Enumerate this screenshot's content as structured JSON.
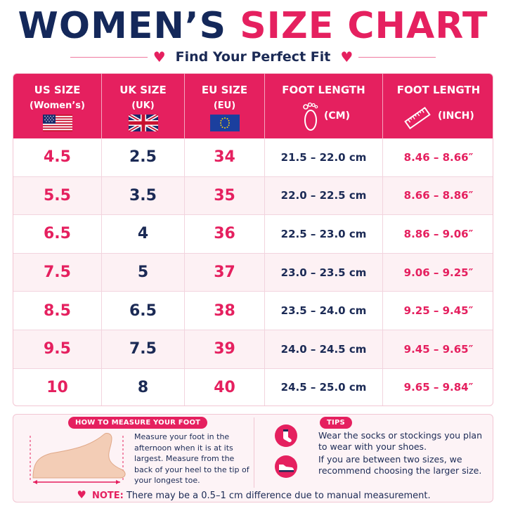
{
  "title": {
    "part1": "WOMEN’S",
    "part2": "SIZE CHART"
  },
  "subtitle": "Find Your Perfect Fit",
  "header": {
    "us": {
      "line1": "US SIZE",
      "line2": "(Women’s)",
      "flag": "us-flag"
    },
    "uk": {
      "line1": "UK SIZE",
      "line2": "(UK)",
      "flag": "uk-flag"
    },
    "eu": {
      "line1": "EU SIZE",
      "line2": "(EU)",
      "flag": "eu-flag"
    },
    "cm": {
      "line1": "FOOT LENGTH",
      "unit": "(CM)",
      "icon": "footprint-icon"
    },
    "inch": {
      "line1": "FOOT LENGTH",
      "unit": "(INCH)",
      "icon": "ruler-icon"
    }
  },
  "rows": [
    {
      "us": "4.5",
      "uk": "2.5",
      "eu": "34",
      "cm": "21.5 – 22.0 cm",
      "inch": "8.46 – 8.66″"
    },
    {
      "us": "5.5",
      "uk": "3.5",
      "eu": "35",
      "cm": "22.0 – 22.5 cm",
      "inch": "8.66 – 8.86″"
    },
    {
      "us": "6.5",
      "uk": "4",
      "eu": "36",
      "cm": "22.5 – 23.0 cm",
      "inch": "8.86 – 9.06″"
    },
    {
      "us": "7.5",
      "uk": "5",
      "eu": "37",
      "cm": "23.0 – 23.5 cm",
      "inch": "9.06 – 9.25″"
    },
    {
      "us": "8.5",
      "uk": "6.5",
      "eu": "38",
      "cm": "23.5 – 24.0 cm",
      "inch": "9.25 – 9.45″"
    },
    {
      "us": "9.5",
      "uk": "7.5",
      "eu": "39",
      "cm": "24.0 – 24.5 cm",
      "inch": "9.45 – 9.65″"
    },
    {
      "us": "10",
      "uk": "8",
      "eu": "40",
      "cm": "24.5 – 25.0 cm",
      "inch": "9.65 – 9.84″"
    }
  ],
  "measure": {
    "label": "HOW TO MEASURE YOUR FOOT",
    "text": "Measure your foot in the afternoon when it is at its largest. Measure from the back of your heel to the tip of your longest toe."
  },
  "tips": {
    "label": "TIPS",
    "items": [
      {
        "icon": "sock-icon",
        "text": "Wear the socks or stockings you plan to wear with your shoes."
      },
      {
        "icon": "shoe-icon",
        "text": "If you are between two sizes, we recommend choosing the larger size."
      }
    ]
  },
  "note": {
    "label": "NOTE:",
    "text": "There may be a 0.5–1 cm difference due to manual measurement."
  },
  "colors": {
    "accent": "#e5205f",
    "navy": "#1b2a55",
    "rowAlt": "#fdf1f4"
  }
}
